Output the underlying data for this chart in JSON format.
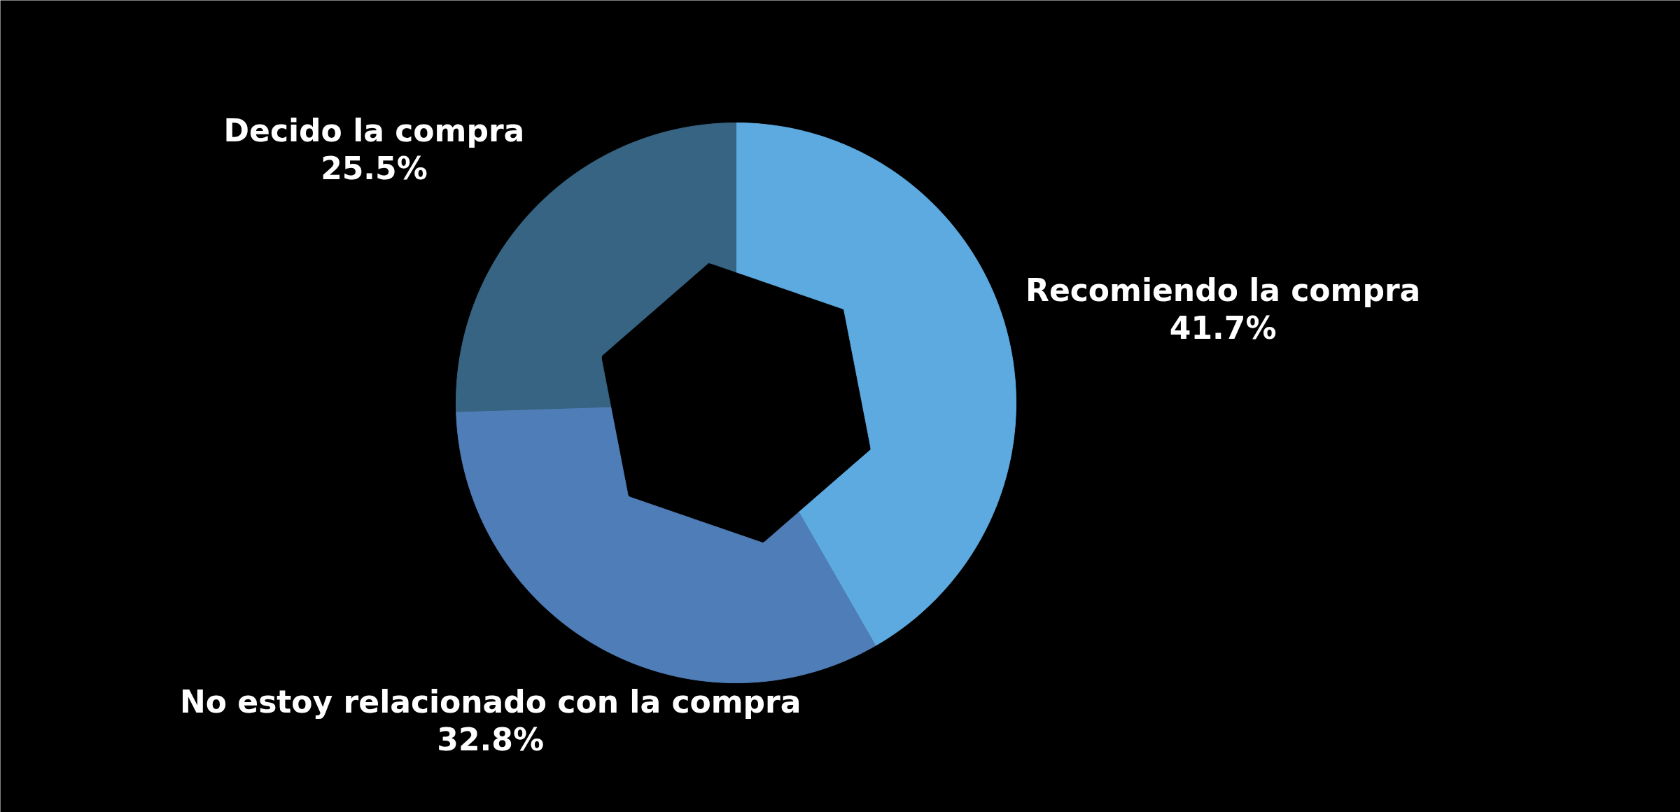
{
  "chart_data": {
    "type": "donut",
    "categories": [
      "Recomiendo la compra",
      "No estoy relacionado con la compra",
      "Decido la compra"
    ],
    "values": [
      41.7,
      32.8,
      25.5
    ],
    "colors": [
      "#5daae0",
      "#4f7db7",
      "#366482"
    ],
    "value_labels": [
      "41.7%",
      "32.8%",
      "25.5%"
    ]
  }
}
